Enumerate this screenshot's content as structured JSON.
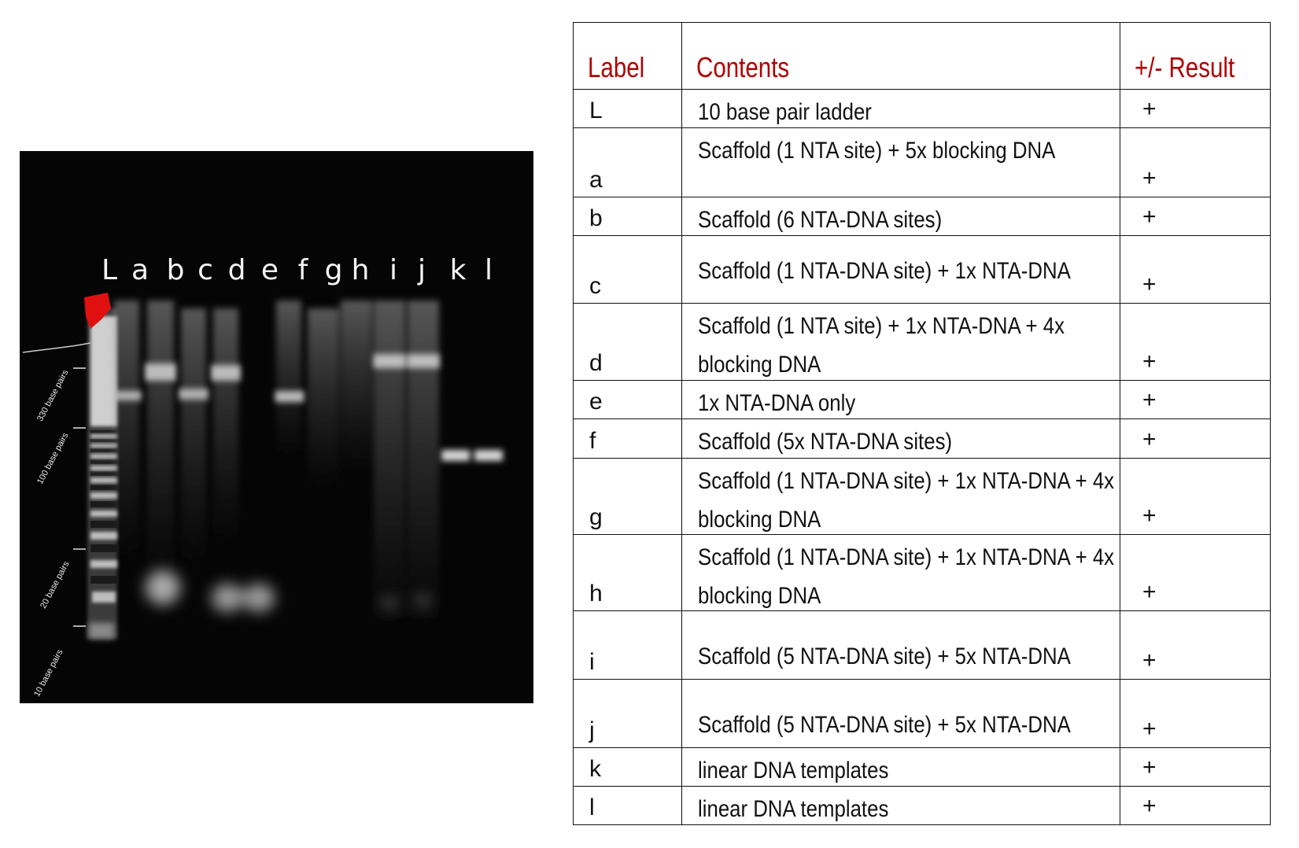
{
  "gel": {
    "lane_labels": [
      "L",
      "a",
      "b",
      "c",
      "d",
      "e",
      "f",
      "g",
      "h",
      "i",
      "j",
      "k",
      "l"
    ],
    "ladder_markers": [
      "330 base pairs",
      "100 base pairs",
      "20 base pairs",
      "10 base pairs"
    ]
  },
  "table": {
    "headers": {
      "label": "Label",
      "contents": "Contents",
      "result": "+/- Result"
    },
    "rows": [
      {
        "label": "L",
        "contents": "10 base pair ladder",
        "result": "+"
      },
      {
        "label": "a",
        "contents": "Scaffold (1 NTA site) + 5x blocking DNA",
        "result": "+"
      },
      {
        "label": "b",
        "contents": "Scaffold  (6 NTA-DNA sites)",
        "result": "+"
      },
      {
        "label": "c",
        "contents": "Scaffold (1 NTA-DNA site) + 1x NTA-DNA",
        "result": "+"
      },
      {
        "label": "d",
        "contents": "Scaffold (1 NTA site) + 1x NTA-DNA + 4x blocking DNA",
        "result": "+"
      },
      {
        "label": "e",
        "contents": "1x NTA-DNA only",
        "result": "+"
      },
      {
        "label": "f",
        "contents": "Scaffold (5x NTA-DNA sites)",
        "result": "+"
      },
      {
        "label": "g",
        "contents": "Scaffold (1 NTA-DNA site) + 1x NTA-DNA + 4x blocking DNA",
        "result": "+"
      },
      {
        "label": "h",
        "contents": "Scaffold (1 NTA-DNA site) + 1x NTA-DNA + 4x blocking DNA",
        "result": "+"
      },
      {
        "label": "i",
        "contents": " Scaffold (5 NTA-DNA site) + 5x NTA-DNA",
        "result": "+"
      },
      {
        "label": "j",
        "contents": " Scaffold (5 NTA-DNA site) + 5x NTA-DNA",
        "result": "+"
      },
      {
        "label": "k",
        "contents": "linear DNA templates",
        "result": "+"
      },
      {
        "label": "l",
        "contents": "linear DNA templates",
        "result": "+"
      }
    ]
  },
  "colors": {
    "header_red": "#b00000",
    "gel_background": "#050505",
    "ladder_highlight": "#e01010"
  }
}
